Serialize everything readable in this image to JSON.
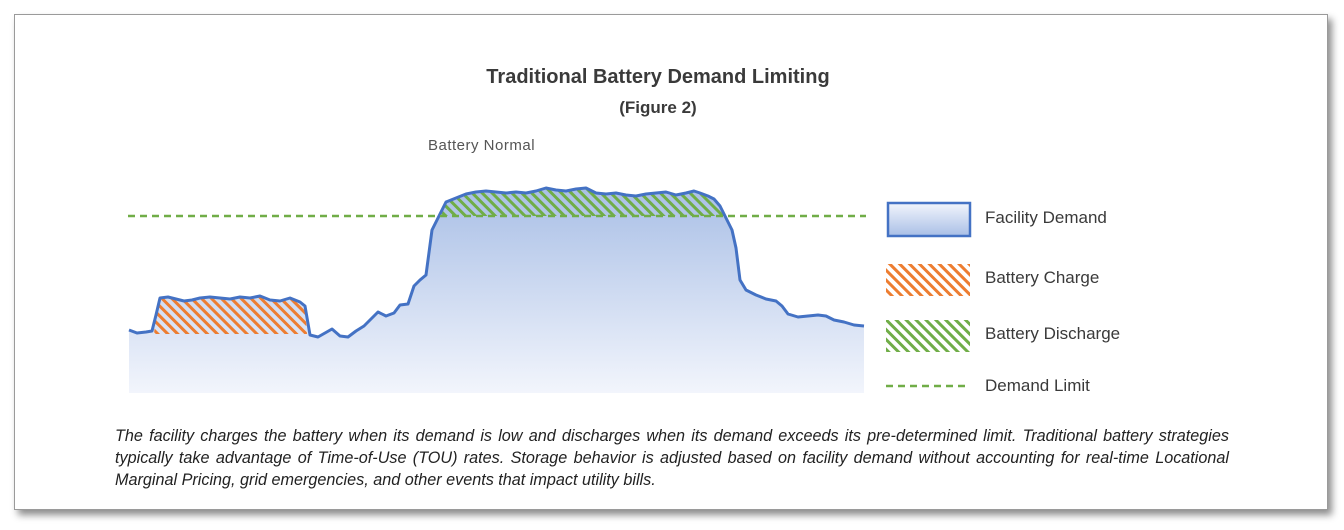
{
  "header": {
    "title": "Traditional Battery Demand Limiting",
    "subtitle": "(Figure 2)"
  },
  "annotation": "Battery Normal",
  "legend": {
    "facility_demand": "Facility Demand",
    "battery_charge": "Battery Charge",
    "battery_discharge": "Battery Discharge",
    "demand_limit": "Demand Limit"
  },
  "colors": {
    "demand_line": "#4472c4",
    "demand_fill_top": "#a9bfe6",
    "demand_fill_bottom": "#f2f5fc",
    "charge_hatch": "#ed7d31",
    "discharge_hatch": "#70ad47",
    "limit_line": "#70ad47"
  },
  "caption": "The facility charges the battery when its demand is low and discharges when its demand exceeds its pre-determined limit. Traditional battery strategies typically take advantage of Time-of-Use (TOU) rates. Storage behavior is adjusted based on facility demand without accounting for real-time Locational Marginal Pricing, grid emergencies, and other events that impact utility bills."
}
